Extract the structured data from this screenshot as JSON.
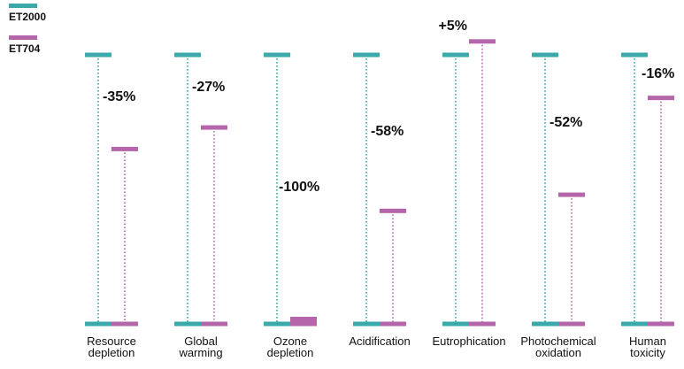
{
  "chart_data": {
    "type": "bar",
    "title": "",
    "xlabel": "",
    "ylabel": "",
    "ylim": [
      0,
      105
    ],
    "grid": false,
    "legend_placement": "top-left",
    "baseline_value": 100,
    "categories": [
      [
        "Resource",
        "depletion"
      ],
      [
        "Global",
        "warming"
      ],
      [
        "Ozone",
        "depletion"
      ],
      [
        "Acidification"
      ],
      [
        "Eutrophication"
      ],
      [
        "Photochemical",
        "oxidation"
      ],
      [
        "Human",
        "toxicity"
      ]
    ],
    "series": [
      {
        "name": "ET2000",
        "color": "#3aa9aa",
        "values": [
          100,
          100,
          100,
          100,
          100,
          100,
          100
        ]
      },
      {
        "name": "ET704",
        "color": "#b565aa",
        "values": [
          65,
          73,
          0,
          42,
          105,
          48,
          84
        ]
      }
    ],
    "change_labels": [
      "-35%",
      "-27%",
      "-100%",
      "-58%",
      "+5%",
      "-52%",
      "-16%"
    ]
  }
}
